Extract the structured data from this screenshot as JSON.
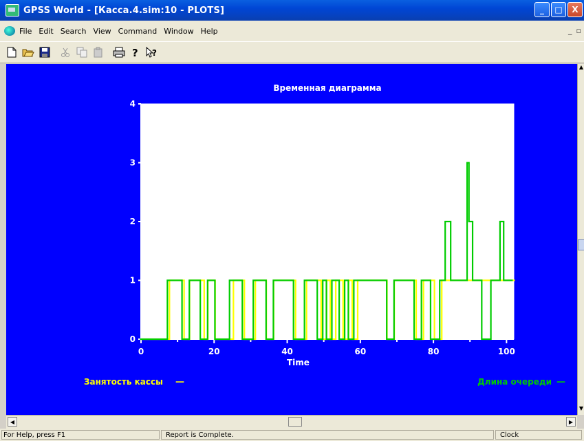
{
  "window": {
    "title": "GPSS World - [Касса.4.sim:10 - PLOTS]"
  },
  "window_controls": {
    "minimize": "_",
    "maximize": "□",
    "close": "X"
  },
  "menu": {
    "items": [
      "File",
      "Edit",
      "Search",
      "View",
      "Command",
      "Window",
      "Help"
    ],
    "mdi_minimize": "_",
    "mdi_restore": "▫"
  },
  "toolbar": {
    "buttons": [
      "new-icon",
      "open-icon",
      "save-icon",
      "cut-icon",
      "copy-icon",
      "paste-icon",
      "print-icon",
      "help-icon",
      "context-help-icon"
    ]
  },
  "colors": {
    "plot_bg": "#0000ff",
    "series1": "#ffff00",
    "series2": "#00cc00",
    "text": "#ffffff"
  },
  "chart_data": {
    "type": "line",
    "title": "Временная диаграмма",
    "xlabel": "Time",
    "ylabel": "",
    "xlim": [
      0,
      102
    ],
    "ylim": [
      0,
      4
    ],
    "x_ticks": [
      0,
      20,
      40,
      60,
      80,
      100
    ],
    "y_ticks": [
      0,
      1,
      2,
      3,
      4
    ],
    "grid": false,
    "series": [
      {
        "name": "Занятость кассы",
        "color": "#ffff00",
        "x": [
          0,
          7.5,
          7.5,
          11.5,
          11.5,
          13,
          13,
          17,
          17,
          18,
          18,
          20,
          20,
          25,
          25,
          28,
          28,
          31,
          31,
          34,
          34,
          36,
          36,
          42,
          42,
          45,
          45,
          49,
          49,
          50.5,
          50.5,
          51.5,
          51.5,
          53,
          53,
          55,
          55,
          56.5,
          56.5,
          57.5,
          57.5,
          59,
          59,
          67,
          67,
          69,
          69,
          75,
          75,
          77,
          77,
          80,
          80,
          82,
          82,
          102
        ],
        "y": [
          0,
          0,
          1,
          1,
          0,
          0,
          1,
          1,
          0,
          0,
          1,
          1,
          0,
          0,
          1,
          1,
          0,
          0,
          1,
          1,
          0,
          0,
          1,
          1,
          0,
          0,
          1,
          1,
          0,
          0,
          1,
          1,
          0,
          0,
          1,
          1,
          0,
          0,
          1,
          1,
          0,
          0,
          1,
          1,
          0,
          0,
          1,
          1,
          0,
          0,
          1,
          1,
          0,
          0,
          1,
          1
        ]
      },
      {
        "name": "Длина очереди",
        "color": "#00cc00",
        "x": [
          0,
          7.5,
          7.5,
          11.5,
          11.5,
          13.5,
          13.5,
          16.5,
          16.5,
          18.5,
          18.5,
          20.5,
          20.5,
          24.5,
          24.5,
          28,
          28,
          31,
          31,
          34.5,
          34.5,
          36.5,
          36.5,
          42,
          42,
          45,
          45,
          48.5,
          48.5,
          50,
          50,
          51,
          51,
          52.5,
          52.5,
          54.5,
          54.5,
          56,
          56,
          57,
          57,
          58.5,
          58.5,
          67.5,
          67.5,
          69.5,
          69.5,
          75,
          75,
          77,
          77,
          79.5,
          79.5,
          82,
          82,
          83.5,
          83.5,
          85,
          85,
          89.5,
          89.5,
          90,
          90,
          91,
          91,
          93.5,
          93.5,
          96,
          96,
          98.5,
          98.5,
          99.5,
          99.5,
          102
        ],
        "y": [
          0,
          0,
          1,
          1,
          0,
          0,
          1,
          1,
          0,
          0,
          1,
          1,
          0,
          0,
          1,
          1,
          0,
          0,
          1,
          1,
          0,
          0,
          1,
          1,
          0,
          0,
          1,
          1,
          0,
          0,
          1,
          1,
          0,
          0,
          1,
          1,
          0,
          0,
          1,
          1,
          0,
          0,
          1,
          1,
          0,
          0,
          1,
          1,
          0,
          0,
          1,
          1,
          0,
          0,
          1,
          1,
          2,
          2,
          1,
          1,
          3,
          3,
          2,
          2,
          1,
          1,
          0,
          0,
          1,
          1,
          2,
          2,
          1,
          1
        ]
      }
    ],
    "legend": [
      {
        "label": "Занятость кассы",
        "position": "bottom-left",
        "marker": "—"
      },
      {
        "label": "Длина очереди",
        "position": "bottom-right",
        "marker": "—"
      }
    ]
  },
  "status": {
    "help": "For Help, press F1",
    "report": "Report is Complete.",
    "clock": "Clock"
  }
}
